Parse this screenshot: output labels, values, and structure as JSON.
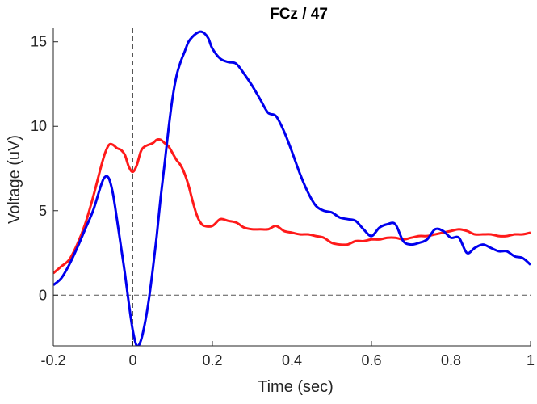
{
  "chart_data": {
    "type": "line",
    "title": "FCz / 47",
    "xlabel": "Time (sec)",
    "ylabel": "Voltage (uV)",
    "xlim": [
      -0.2,
      1.0
    ],
    "ylim": [
      -3,
      15.8
    ],
    "x_ticks": [
      -0.2,
      0,
      0.2,
      0.4,
      0.6,
      0.8,
      1
    ],
    "x_tick_labels": [
      "-0.2",
      "0",
      "0.2",
      "0.4",
      "0.6",
      "0.8",
      "1"
    ],
    "y_ticks": [
      0,
      5,
      10,
      15
    ],
    "y_tick_labels": [
      "0",
      "5",
      "10",
      "15"
    ],
    "grid": false,
    "reference_lines": [
      {
        "axis": "x",
        "value": 0,
        "style": "dashed"
      },
      {
        "axis": "y",
        "value": 0,
        "style": "dashed"
      }
    ],
    "series": [
      {
        "name": "red",
        "color": "#ff1a1a",
        "x": [
          -0.2,
          -0.18,
          -0.16,
          -0.14,
          -0.12,
          -0.1,
          -0.08,
          -0.07,
          -0.06,
          -0.05,
          -0.04,
          -0.03,
          -0.02,
          -0.01,
          0,
          0.01,
          0.02,
          0.03,
          0.05,
          0.06,
          0.07,
          0.08,
          0.09,
          0.1,
          0.11,
          0.12,
          0.13,
          0.14,
          0.15,
          0.16,
          0.17,
          0.18,
          0.2,
          0.22,
          0.24,
          0.26,
          0.28,
          0.3,
          0.32,
          0.34,
          0.36,
          0.38,
          0.4,
          0.42,
          0.44,
          0.46,
          0.48,
          0.5,
          0.52,
          0.54,
          0.56,
          0.58,
          0.6,
          0.62,
          0.64,
          0.66,
          0.68,
          0.7,
          0.72,
          0.74,
          0.76,
          0.78,
          0.8,
          0.82,
          0.84,
          0.86,
          0.88,
          0.9,
          0.92,
          0.94,
          0.96,
          0.98,
          1.0
        ],
        "y": [
          1.3,
          1.7,
          2.1,
          3.0,
          4.2,
          5.8,
          7.6,
          8.4,
          8.9,
          8.9,
          8.7,
          8.6,
          8.3,
          7.6,
          7.3,
          7.7,
          8.5,
          8.8,
          9.0,
          9.2,
          9.2,
          9.0,
          8.8,
          8.4,
          8.0,
          7.7,
          7.2,
          6.5,
          5.6,
          4.8,
          4.3,
          4.1,
          4.1,
          4.5,
          4.4,
          4.3,
          4.0,
          3.9,
          3.9,
          3.9,
          4.1,
          3.8,
          3.7,
          3.6,
          3.6,
          3.5,
          3.4,
          3.1,
          3.0,
          3.0,
          3.2,
          3.2,
          3.3,
          3.3,
          3.4,
          3.4,
          3.3,
          3.4,
          3.5,
          3.5,
          3.6,
          3.7,
          3.8,
          3.9,
          3.8,
          3.6,
          3.6,
          3.6,
          3.5,
          3.5,
          3.6,
          3.6,
          3.7
        ]
      },
      {
        "name": "blue",
        "color": "#0000ee",
        "x": [
          -0.2,
          -0.18,
          -0.16,
          -0.14,
          -0.12,
          -0.1,
          -0.08,
          -0.07,
          -0.06,
          -0.05,
          -0.04,
          -0.03,
          -0.02,
          -0.01,
          0,
          0.01,
          0.02,
          0.03,
          0.04,
          0.05,
          0.06,
          0.07,
          0.08,
          0.09,
          0.1,
          0.11,
          0.12,
          0.13,
          0.14,
          0.15,
          0.16,
          0.17,
          0.18,
          0.19,
          0.2,
          0.22,
          0.24,
          0.26,
          0.28,
          0.3,
          0.32,
          0.34,
          0.36,
          0.38,
          0.4,
          0.42,
          0.44,
          0.46,
          0.48,
          0.5,
          0.52,
          0.54,
          0.56,
          0.58,
          0.6,
          0.62,
          0.64,
          0.66,
          0.68,
          0.7,
          0.72,
          0.74,
          0.76,
          0.78,
          0.8,
          0.82,
          0.84,
          0.86,
          0.88,
          0.9,
          0.92,
          0.94,
          0.96,
          0.98,
          1.0
        ],
        "y": [
          0.6,
          1.0,
          1.8,
          2.8,
          3.9,
          5.0,
          6.5,
          7.0,
          6.9,
          6.0,
          4.5,
          2.9,
          1.3,
          -0.5,
          -2.1,
          -3.0,
          -2.7,
          -1.7,
          -0.3,
          1.5,
          3.5,
          5.8,
          7.8,
          9.9,
          11.7,
          13.0,
          13.8,
          14.4,
          15.0,
          15.3,
          15.5,
          15.6,
          15.5,
          15.2,
          14.6,
          14.0,
          13.8,
          13.7,
          13.1,
          12.4,
          11.6,
          10.8,
          10.6,
          9.7,
          8.5,
          7.2,
          6.1,
          5.3,
          5.0,
          4.9,
          4.6,
          4.5,
          4.4,
          3.9,
          3.5,
          4.0,
          4.2,
          4.2,
          3.2,
          3.0,
          3.1,
          3.3,
          3.9,
          3.8,
          3.4,
          3.4,
          2.5,
          2.8,
          3.0,
          2.8,
          2.6,
          2.6,
          2.3,
          2.2,
          1.8
        ]
      }
    ]
  }
}
